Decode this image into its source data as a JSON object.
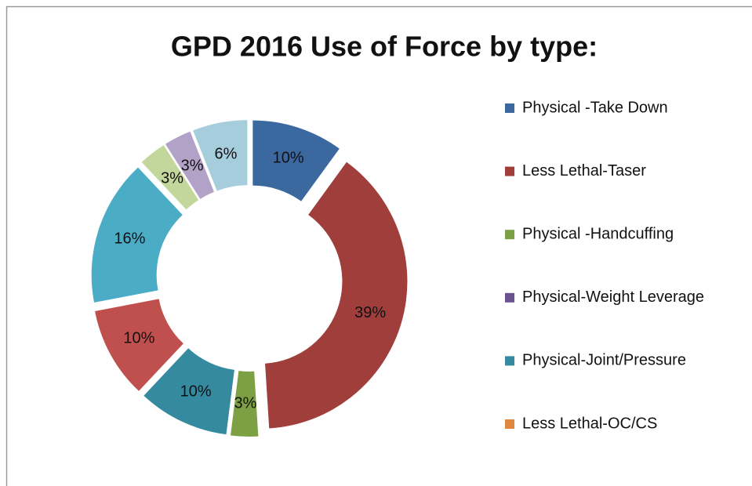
{
  "chart_data": {
    "type": "donut",
    "title": "GPD 2016 Use of Force by type:",
    "categories": [
      "Physical -Take Down",
      "Less Lethal-Taser",
      "Physical -Handcuffing",
      "Physical-Weight Leverage",
      "Physical-Joint/Pressure",
      "Less Lethal-OC/CS",
      null,
      null,
      null
    ],
    "values": [
      10,
      39,
      3,
      10,
      10,
      16,
      3,
      3,
      6
    ],
    "value_labels": [
      "10%",
      "39%",
      "3%",
      "10%",
      "10%",
      "16%",
      "3%",
      "3%",
      "6%"
    ],
    "colors": [
      "#3C68A0",
      "#A03E3C",
      "#7CA043",
      "#358AA0",
      "#C0504D",
      "#4BACC6",
      "#C3D69B",
      "#B3A2C7",
      "#A5CDDC"
    ],
    "legend_colors": [
      "#3C68A0",
      "#A03E3C",
      "#7CA043",
      "#6A5291",
      "#358AA0",
      "#E0893E"
    ],
    "legend": "right"
  }
}
